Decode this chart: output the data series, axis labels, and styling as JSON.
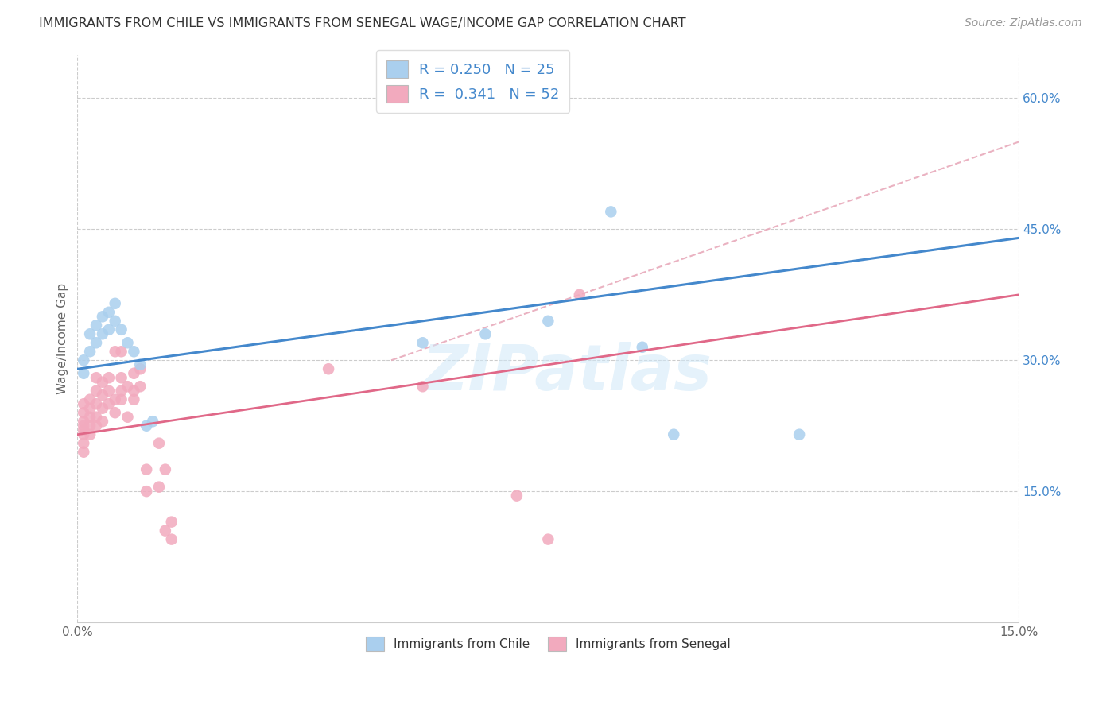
{
  "title": "IMMIGRANTS FROM CHILE VS IMMIGRANTS FROM SENEGAL WAGE/INCOME GAP CORRELATION CHART",
  "source": "Source: ZipAtlas.com",
  "ylabel": "Wage/Income Gap",
  "watermark": "ZIPatlas",
  "legend_r_chile": "0.250",
  "legend_n_chile": "25",
  "legend_r_senegal": "0.341",
  "legend_n_senegal": "52",
  "chile_color": "#aacfee",
  "senegal_color": "#f2aabe",
  "chile_line_color": "#4488cc",
  "senegal_line_color": "#e06888",
  "dashed_line_color": "#e8aabb",
  "xlim": [
    0.0,
    0.15
  ],
  "ylim": [
    0.0,
    0.65
  ],
  "xticks": [
    0.0,
    0.03,
    0.06,
    0.09,
    0.12,
    0.15
  ],
  "xtick_labels": [
    "0.0%",
    "",
    "",
    "",
    "",
    "15.0%"
  ],
  "yticks_right": [
    0.15,
    0.3,
    0.45,
    0.6
  ],
  "ytick_labels_right": [
    "15.0%",
    "30.0%",
    "45.0%",
    "60.0%"
  ],
  "chile_x": [
    0.001,
    0.001,
    0.002,
    0.002,
    0.003,
    0.003,
    0.004,
    0.004,
    0.005,
    0.005,
    0.006,
    0.006,
    0.007,
    0.008,
    0.009,
    0.01,
    0.011,
    0.012,
    0.055,
    0.065,
    0.075,
    0.085,
    0.09,
    0.095,
    0.115
  ],
  "chile_y": [
    0.285,
    0.3,
    0.31,
    0.33,
    0.32,
    0.34,
    0.33,
    0.35,
    0.335,
    0.355,
    0.345,
    0.365,
    0.335,
    0.32,
    0.31,
    0.295,
    0.225,
    0.23,
    0.32,
    0.33,
    0.345,
    0.47,
    0.315,
    0.215,
    0.215
  ],
  "senegal_x": [
    0.001,
    0.001,
    0.001,
    0.001,
    0.001,
    0.001,
    0.001,
    0.001,
    0.002,
    0.002,
    0.002,
    0.002,
    0.002,
    0.003,
    0.003,
    0.003,
    0.003,
    0.003,
    0.004,
    0.004,
    0.004,
    0.004,
    0.005,
    0.005,
    0.005,
    0.006,
    0.006,
    0.006,
    0.007,
    0.007,
    0.007,
    0.007,
    0.008,
    0.008,
    0.009,
    0.009,
    0.009,
    0.01,
    0.01,
    0.011,
    0.011,
    0.013,
    0.013,
    0.014,
    0.014,
    0.015,
    0.015,
    0.04,
    0.055,
    0.07,
    0.075,
    0.08
  ],
  "senegal_y": [
    0.195,
    0.205,
    0.215,
    0.22,
    0.225,
    0.23,
    0.24,
    0.25,
    0.215,
    0.225,
    0.235,
    0.245,
    0.255,
    0.225,
    0.235,
    0.25,
    0.265,
    0.28,
    0.23,
    0.245,
    0.26,
    0.275,
    0.25,
    0.265,
    0.28,
    0.24,
    0.255,
    0.31,
    0.255,
    0.265,
    0.28,
    0.31,
    0.235,
    0.27,
    0.255,
    0.265,
    0.285,
    0.27,
    0.29,
    0.15,
    0.175,
    0.155,
    0.205,
    0.105,
    0.175,
    0.095,
    0.115,
    0.29,
    0.27,
    0.145,
    0.095,
    0.375
  ],
  "chile_trendline": [
    0.29,
    0.44
  ],
  "senegal_trendline": [
    0.215,
    0.375
  ],
  "dashed_trendline_x": [
    0.05,
    0.15
  ],
  "dashed_trendline_y": [
    0.3,
    0.55
  ]
}
